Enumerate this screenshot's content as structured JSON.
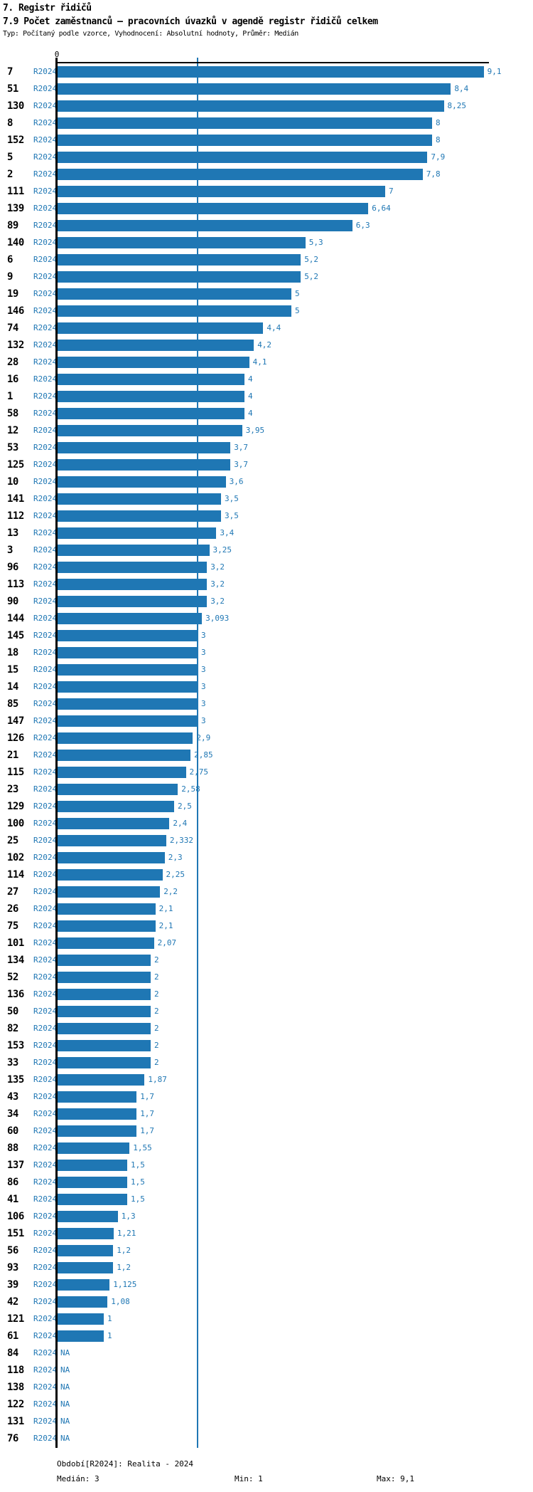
{
  "header": {
    "title": "7. Registr řidičů",
    "subtitle": "7.9 Počet zaměstnanců – pracovních úvazků v agendě registr řidičů celkem",
    "meta": "Typ: Počítaný podle vzorce, Vyhodnocení: Absolutní hodnoty, Průměr: Medián"
  },
  "colors": {
    "bar": "#1f77b4",
    "blue_text": "#1f77b4",
    "median_line": "#1f77b4",
    "axis": "#000000"
  },
  "chart_data": {
    "type": "bar",
    "orientation": "horizontal",
    "title": "7.9 Počet zaměstnanců – pracovních úvazků v agendě registr řidičů celkem",
    "xlabel": "",
    "ylabel": "",
    "xlim": [
      0,
      9.2
    ],
    "axis_zero_label": "0",
    "median_reference_line": 3,
    "period_label": "R2024",
    "na_label": "NA",
    "rows": [
      {
        "region": "7",
        "period": "R2024",
        "value": 9.1,
        "label": "9,1"
      },
      {
        "region": "51",
        "period": "R2024",
        "value": 8.4,
        "label": "8,4"
      },
      {
        "region": "130",
        "period": "R2024",
        "value": 8.25,
        "label": "8,25"
      },
      {
        "region": "8",
        "period": "R2024",
        "value": 8,
        "label": "8"
      },
      {
        "region": "152",
        "period": "R2024",
        "value": 8,
        "label": "8"
      },
      {
        "region": "5",
        "period": "R2024",
        "value": 7.9,
        "label": "7,9"
      },
      {
        "region": "2",
        "period": "R2024",
        "value": 7.8,
        "label": "7,8"
      },
      {
        "region": "111",
        "period": "R2024",
        "value": 7,
        "label": "7"
      },
      {
        "region": "139",
        "period": "R2024",
        "value": 6.64,
        "label": "6,64"
      },
      {
        "region": "89",
        "period": "R2024",
        "value": 6.3,
        "label": "6,3"
      },
      {
        "region": "140",
        "period": "R2024",
        "value": 5.3,
        "label": "5,3"
      },
      {
        "region": "6",
        "period": "R2024",
        "value": 5.2,
        "label": "5,2"
      },
      {
        "region": "9",
        "period": "R2024",
        "value": 5.2,
        "label": "5,2"
      },
      {
        "region": "19",
        "period": "R2024",
        "value": 5,
        "label": "5"
      },
      {
        "region": "146",
        "period": "R2024",
        "value": 5,
        "label": "5"
      },
      {
        "region": "74",
        "period": "R2024",
        "value": 4.4,
        "label": "4,4"
      },
      {
        "region": "132",
        "period": "R2024",
        "value": 4.2,
        "label": "4,2"
      },
      {
        "region": "28",
        "period": "R2024",
        "value": 4.1,
        "label": "4,1"
      },
      {
        "region": "16",
        "period": "R2024",
        "value": 4,
        "label": "4"
      },
      {
        "region": "1",
        "period": "R2024",
        "value": 4,
        "label": "4"
      },
      {
        "region": "58",
        "period": "R2024",
        "value": 4,
        "label": "4"
      },
      {
        "region": "12",
        "period": "R2024",
        "value": 3.95,
        "label": "3,95"
      },
      {
        "region": "53",
        "period": "R2024",
        "value": 3.7,
        "label": "3,7"
      },
      {
        "region": "125",
        "period": "R2024",
        "value": 3.7,
        "label": "3,7"
      },
      {
        "region": "10",
        "period": "R2024",
        "value": 3.6,
        "label": "3,6"
      },
      {
        "region": "141",
        "period": "R2024",
        "value": 3.5,
        "label": "3,5"
      },
      {
        "region": "112",
        "period": "R2024",
        "value": 3.5,
        "label": "3,5"
      },
      {
        "region": "13",
        "period": "R2024",
        "value": 3.4,
        "label": "3,4"
      },
      {
        "region": "3",
        "period": "R2024",
        "value": 3.25,
        "label": "3,25"
      },
      {
        "region": "96",
        "period": "R2024",
        "value": 3.2,
        "label": "3,2"
      },
      {
        "region": "113",
        "period": "R2024",
        "value": 3.2,
        "label": "3,2"
      },
      {
        "region": "90",
        "period": "R2024",
        "value": 3.2,
        "label": "3,2"
      },
      {
        "region": "144",
        "period": "R2024",
        "value": 3.093,
        "label": "3,093"
      },
      {
        "region": "145",
        "period": "R2024",
        "value": 3,
        "label": "3"
      },
      {
        "region": "18",
        "period": "R2024",
        "value": 3,
        "label": "3"
      },
      {
        "region": "15",
        "period": "R2024",
        "value": 3,
        "label": "3"
      },
      {
        "region": "14",
        "period": "R2024",
        "value": 3,
        "label": "3"
      },
      {
        "region": "85",
        "period": "R2024",
        "value": 3,
        "label": "3"
      },
      {
        "region": "147",
        "period": "R2024",
        "value": 3,
        "label": "3"
      },
      {
        "region": "126",
        "period": "R2024",
        "value": 2.9,
        "label": "2,9"
      },
      {
        "region": "21",
        "period": "R2024",
        "value": 2.85,
        "label": "2,85"
      },
      {
        "region": "115",
        "period": "R2024",
        "value": 2.75,
        "label": "2,75"
      },
      {
        "region": "23",
        "period": "R2024",
        "value": 2.58,
        "label": "2,58"
      },
      {
        "region": "129",
        "period": "R2024",
        "value": 2.5,
        "label": "2,5"
      },
      {
        "region": "100",
        "period": "R2024",
        "value": 2.4,
        "label": "2,4"
      },
      {
        "region": "25",
        "period": "R2024",
        "value": 2.332,
        "label": "2,332"
      },
      {
        "region": "102",
        "period": "R2024",
        "value": 2.3,
        "label": "2,3"
      },
      {
        "region": "114",
        "period": "R2024",
        "value": 2.25,
        "label": "2,25"
      },
      {
        "region": "27",
        "period": "R2024",
        "value": 2.2,
        "label": "2,2"
      },
      {
        "region": "26",
        "period": "R2024",
        "value": 2.1,
        "label": "2,1"
      },
      {
        "region": "75",
        "period": "R2024",
        "value": 2.1,
        "label": "2,1"
      },
      {
        "region": "101",
        "period": "R2024",
        "value": 2.07,
        "label": "2,07"
      },
      {
        "region": "134",
        "period": "R2024",
        "value": 2,
        "label": "2"
      },
      {
        "region": "52",
        "period": "R2024",
        "value": 2,
        "label": "2"
      },
      {
        "region": "136",
        "period": "R2024",
        "value": 2,
        "label": "2"
      },
      {
        "region": "50",
        "period": "R2024",
        "value": 2,
        "label": "2"
      },
      {
        "region": "82",
        "period": "R2024",
        "value": 2,
        "label": "2"
      },
      {
        "region": "153",
        "period": "R2024",
        "value": 2,
        "label": "2"
      },
      {
        "region": "33",
        "period": "R2024",
        "value": 2,
        "label": "2"
      },
      {
        "region": "135",
        "period": "R2024",
        "value": 1.87,
        "label": "1,87"
      },
      {
        "region": "43",
        "period": "R2024",
        "value": 1.7,
        "label": "1,7"
      },
      {
        "region": "34",
        "period": "R2024",
        "value": 1.7,
        "label": "1,7"
      },
      {
        "region": "60",
        "period": "R2024",
        "value": 1.7,
        "label": "1,7"
      },
      {
        "region": "88",
        "period": "R2024",
        "value": 1.55,
        "label": "1,55"
      },
      {
        "region": "137",
        "period": "R2024",
        "value": 1.5,
        "label": "1,5"
      },
      {
        "region": "86",
        "period": "R2024",
        "value": 1.5,
        "label": "1,5"
      },
      {
        "region": "41",
        "period": "R2024",
        "value": 1.5,
        "label": "1,5"
      },
      {
        "region": "106",
        "period": "R2024",
        "value": 1.3,
        "label": "1,3"
      },
      {
        "region": "151",
        "period": "R2024",
        "value": 1.21,
        "label": "1,21"
      },
      {
        "region": "56",
        "period": "R2024",
        "value": 1.2,
        "label": "1,2"
      },
      {
        "region": "93",
        "period": "R2024",
        "value": 1.2,
        "label": "1,2"
      },
      {
        "region": "39",
        "period": "R2024",
        "value": 1.125,
        "label": "1,125"
      },
      {
        "region": "42",
        "period": "R2024",
        "value": 1.08,
        "label": "1,08"
      },
      {
        "region": "121",
        "period": "R2024",
        "value": 1,
        "label": "1"
      },
      {
        "region": "61",
        "period": "R2024",
        "value": 1,
        "label": "1"
      },
      {
        "region": "84",
        "period": "R2024",
        "value": null,
        "label": "NA"
      },
      {
        "region": "118",
        "period": "R2024",
        "value": null,
        "label": "NA"
      },
      {
        "region": "138",
        "period": "R2024",
        "value": null,
        "label": "NA"
      },
      {
        "region": "122",
        "period": "R2024",
        "value": null,
        "label": "NA"
      },
      {
        "region": "131",
        "period": "R2024",
        "value": null,
        "label": "NA"
      },
      {
        "region": "76",
        "period": "R2024",
        "value": null,
        "label": "NA"
      }
    ],
    "footer": {
      "period_line": "Období[R2024]: Realita - 2024",
      "median": "Medián: 3",
      "min": "Min: 1",
      "max": "Max: 9,1"
    }
  }
}
